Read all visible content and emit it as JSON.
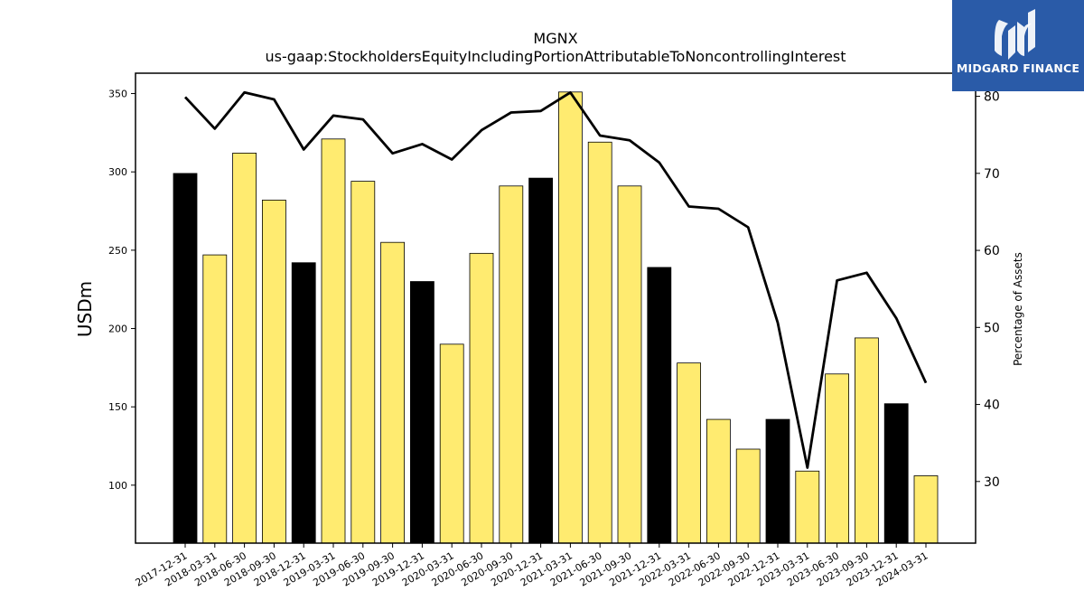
{
  "header": {
    "title": "MGNX",
    "subtitle": "us-gaap:StockholdersEquityIncludingPortionAttributableToNoncontrollingInterest"
  },
  "logo": {
    "text": "MIDGARD FINANCE",
    "background": "#2a5ba8"
  },
  "chart_data": {
    "type": "bar",
    "title": "MGNX",
    "subtitle": "us-gaap:StockholdersEquityIncludingPortionAttributableToNoncontrollingInterest",
    "ylabel": "USDm",
    "y2label": "Percentage of Assets",
    "ylim": [
      63,
      363
    ],
    "y2lim": [
      22,
      83
    ],
    "yticks": [
      100,
      150,
      200,
      250,
      300,
      350
    ],
    "y2ticks": [
      30,
      40,
      50,
      60,
      70,
      80
    ],
    "grid": false,
    "categories": [
      "2017-12-31",
      "2018-03-31",
      "2018-06-30",
      "2018-09-30",
      "2018-12-31",
      "2019-03-31",
      "2019-06-30",
      "2019-09-30",
      "2019-12-31",
      "2020-03-31",
      "2020-06-30",
      "2020-09-30",
      "2020-12-31",
      "2021-03-31",
      "2021-06-30",
      "2021-09-30",
      "2021-12-31",
      "2022-03-31",
      "2022-06-30",
      "2022-09-30",
      "2022-12-31",
      "2023-03-31",
      "2023-06-30",
      "2023-09-30",
      "2023-12-31",
      "2024-03-31"
    ],
    "series": [
      {
        "type": "bar",
        "values": [
          299,
          247,
          312,
          282,
          242,
          321,
          294,
          255,
          230,
          190,
          248,
          291,
          296,
          351,
          319,
          291,
          239,
          178,
          142,
          123,
          142,
          109,
          171,
          194,
          152,
          106
        ],
        "colors": [
          "#000000",
          "#ffeb70",
          "#ffeb70",
          "#ffeb70",
          "#000000",
          "#ffeb70",
          "#ffeb70",
          "#ffeb70",
          "#000000",
          "#ffeb70",
          "#ffeb70",
          "#ffeb70",
          "#000000",
          "#ffeb70",
          "#ffeb70",
          "#ffeb70",
          "#000000",
          "#ffeb70",
          "#ffeb70",
          "#ffeb70",
          "#000000",
          "#ffeb70",
          "#ffeb70",
          "#ffeb70",
          "#000000",
          "#ffeb70"
        ]
      },
      {
        "type": "line",
        "axis": "right",
        "color": "#000000",
        "values": [
          79.9,
          75.8,
          80.5,
          79.6,
          73.1,
          77.5,
          77.0,
          72.6,
          73.8,
          71.8,
          75.6,
          77.9,
          78.1,
          80.5,
          74.9,
          74.3,
          71.4,
          65.7,
          65.4,
          63.0,
          50.6,
          31.8,
          56.1,
          57.1,
          51.2,
          42.8
        ]
      }
    ]
  }
}
